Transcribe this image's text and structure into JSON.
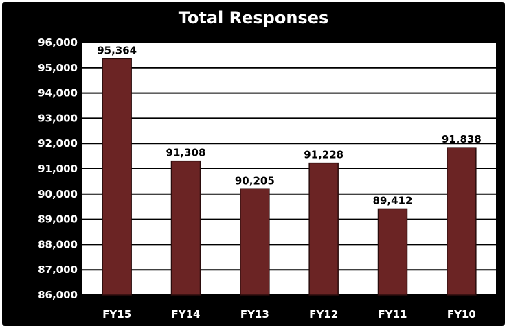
{
  "chart_data": {
    "type": "bar",
    "title": "Total Responses",
    "xlabel": "",
    "ylabel": "",
    "categories": [
      "FY15",
      "FY14",
      "FY13",
      "FY12",
      "FY11",
      "FY10"
    ],
    "values": [
      95364,
      91308,
      90205,
      91228,
      89412,
      91838
    ],
    "value_labels": [
      "95,364",
      "91,308",
      "90,205",
      "91,228",
      "89,412",
      "91,838"
    ],
    "ylim": [
      86000,
      96000
    ],
    "yticks": [
      86000,
      87000,
      88000,
      89000,
      90000,
      91000,
      92000,
      93000,
      94000,
      95000,
      96000
    ],
    "ytick_labels": [
      "86,000",
      "87,000",
      "88,000",
      "89,000",
      "90,000",
      "91,000",
      "92,000",
      "93,000",
      "94,000",
      "95,000",
      "96,000"
    ],
    "grid": true,
    "legend": "none",
    "colors": {
      "background": "#000000",
      "plot_area": "#ffffff",
      "bar": "#6b2424",
      "bar_edge": "#2a0c0c",
      "gridline": "#000000",
      "title": "#ffffff",
      "axis_text": "#ffffff",
      "value_text": "#000000"
    }
  }
}
